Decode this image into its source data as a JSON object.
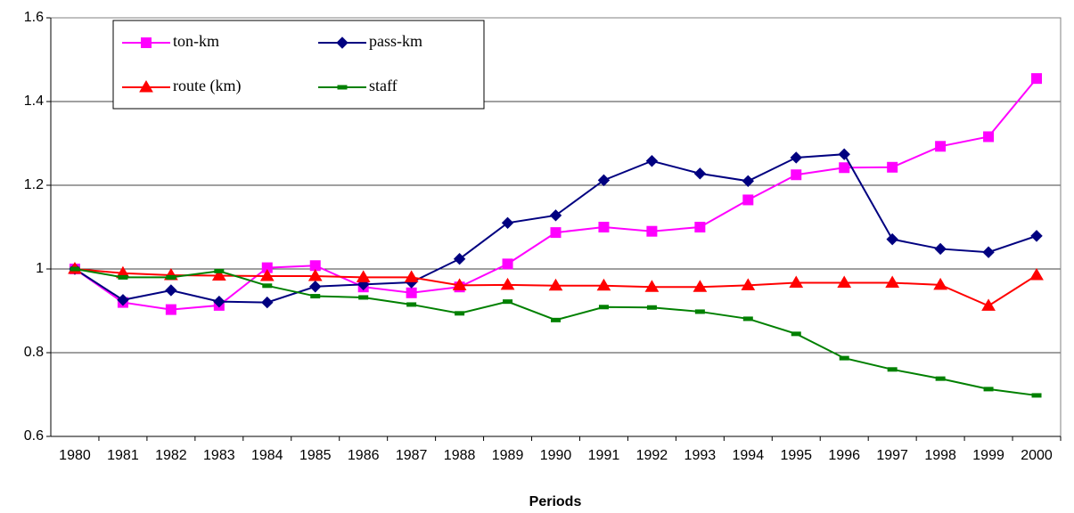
{
  "chart_data": {
    "type": "line",
    "x_label": "Periods",
    "categories": [
      "1980",
      "1981",
      "1982",
      "1983",
      "1984",
      "1985",
      "1986",
      "1987",
      "1988",
      "1989",
      "1990",
      "1991",
      "1992",
      "1993",
      "1994",
      "1995",
      "1996",
      "1997",
      "1998",
      "1999",
      "2000"
    ],
    "series": [
      {
        "name": "ton-km",
        "color": "#ff00ff",
        "marker": "square",
        "values": [
          1.0,
          0.92,
          0.903,
          0.913,
          1.003,
          1.008,
          0.957,
          0.943,
          0.957,
          1.012,
          1.087,
          1.1,
          1.09,
          1.1,
          1.165,
          1.225,
          1.242,
          1.243,
          1.293,
          1.316,
          1.455
        ]
      },
      {
        "name": "pass-km",
        "color": "#000080",
        "marker": "diamond",
        "values": [
          1.0,
          0.926,
          0.949,
          0.922,
          0.92,
          0.958,
          0.963,
          0.968,
          1.024,
          1.11,
          1.128,
          1.212,
          1.258,
          1.228,
          1.21,
          1.266,
          1.274,
          1.071,
          1.048,
          1.04,
          1.079
        ]
      },
      {
        "name": "route (km)",
        "color": "#ff0000",
        "marker": "triangle",
        "values": [
          1.0,
          0.99,
          0.985,
          0.984,
          0.983,
          0.983,
          0.98,
          0.98,
          0.961,
          0.962,
          0.96,
          0.96,
          0.957,
          0.957,
          0.961,
          0.967,
          0.967,
          0.967,
          0.962,
          0.912,
          0.985
        ]
      },
      {
        "name": "staff",
        "color": "#008000",
        "marker": "dash",
        "values": [
          1.0,
          0.98,
          0.98,
          0.995,
          0.96,
          0.935,
          0.932,
          0.915,
          0.894,
          0.922,
          0.878,
          0.909,
          0.908,
          0.898,
          0.881,
          0.845,
          0.787,
          0.76,
          0.738,
          0.713,
          0.698
        ]
      }
    ],
    "ylim": [
      0.6,
      1.6
    ],
    "yticks": [
      0.6,
      0.8,
      1,
      1.2,
      1.4,
      1.6
    ],
    "grid": true
  }
}
